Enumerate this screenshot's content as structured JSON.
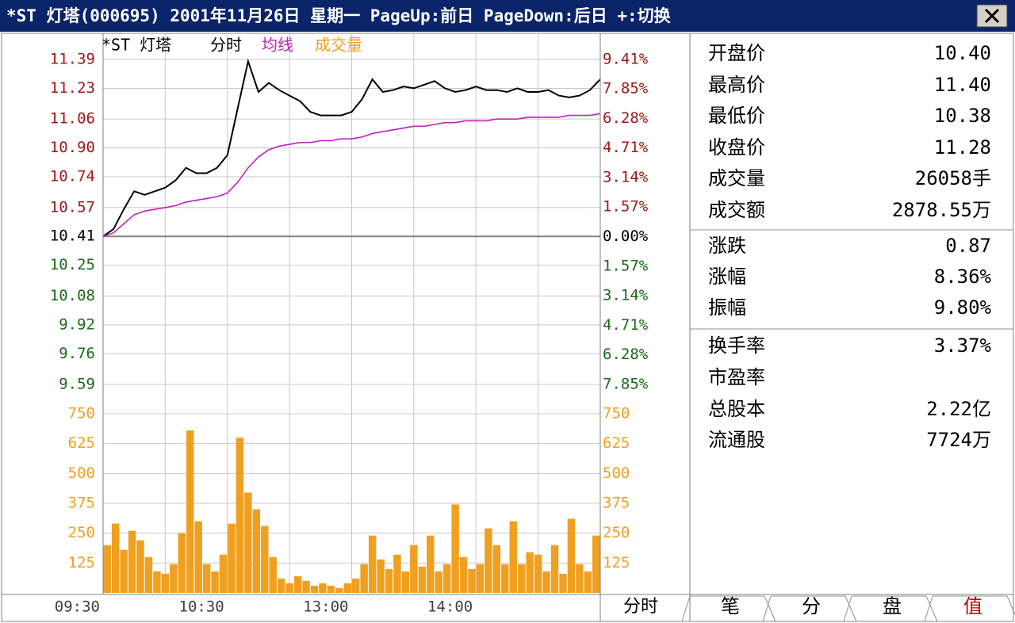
{
  "titlebar": {
    "title": "*ST 灯塔(000695) 2001年11月26日 星期一 PageUp:前日 PageDown:后日 +:切换"
  },
  "chart_data": [
    {
      "type": "line",
      "title": "*ST 灯塔",
      "x": [
        0,
        5,
        10,
        15,
        20,
        25,
        30,
        35,
        40,
        45,
        50,
        55,
        60,
        65,
        70,
        75,
        80,
        85,
        90,
        95,
        100,
        105,
        110,
        115,
        120,
        125,
        130,
        135,
        140,
        145,
        150,
        155,
        160,
        165,
        170,
        175,
        180,
        185,
        190,
        195,
        200,
        205,
        210,
        215,
        220,
        225,
        230,
        235,
        240
      ],
      "series": [
        {
          "name": "分时",
          "color": "#000000",
          "values": [
            10.41,
            10.45,
            10.56,
            10.66,
            10.64,
            10.66,
            10.68,
            10.72,
            10.79,
            10.76,
            10.76,
            10.79,
            10.86,
            11.12,
            11.38,
            11.21,
            11.26,
            11.22,
            11.19,
            11.16,
            11.1,
            11.08,
            11.08,
            11.08,
            11.1,
            11.17,
            11.28,
            11.21,
            11.22,
            11.24,
            11.23,
            11.25,
            11.27,
            11.23,
            11.21,
            11.22,
            11.24,
            11.22,
            11.22,
            11.21,
            11.23,
            11.21,
            11.21,
            11.22,
            11.19,
            11.18,
            11.19,
            11.22,
            11.28
          ]
        },
        {
          "name": "均线",
          "color": "#c020c0",
          "values": [
            10.41,
            10.43,
            10.48,
            10.53,
            10.55,
            10.56,
            10.57,
            10.58,
            10.6,
            10.61,
            10.62,
            10.63,
            10.65,
            10.71,
            10.79,
            10.85,
            10.89,
            10.91,
            10.92,
            10.93,
            10.93,
            10.94,
            10.94,
            10.95,
            10.95,
            10.96,
            10.98,
            10.99,
            11.0,
            11.01,
            11.02,
            11.02,
            11.03,
            11.04,
            11.04,
            11.05,
            11.05,
            11.05,
            11.06,
            11.06,
            11.06,
            11.07,
            11.07,
            11.07,
            11.07,
            11.08,
            11.08,
            11.08,
            11.09
          ]
        }
      ],
      "xlim": [
        0,
        240
      ],
      "xticks": [
        {
          "value": 0,
          "label": "09:30"
        },
        {
          "value": 60,
          "label": "10:30"
        },
        {
          "value": 120,
          "label": "13:00"
        },
        {
          "value": 180,
          "label": "14:00"
        }
      ],
      "xgrid": [
        0,
        30,
        60,
        90,
        120,
        150,
        180,
        210,
        240
      ],
      "ylim": [
        9.59,
        11.39
      ],
      "yticks": [
        11.39,
        11.23,
        11.06,
        {
          "value": 10.9,
          "label": "10.90"
        },
        10.74,
        10.57,
        10.41,
        10.25,
        10.08,
        9.92,
        9.76,
        9.59
      ],
      "y2lim": [
        -7.85,
        9.41
      ],
      "y2ticks": [
        {
          "value": 9.41,
          "label": "9.41%"
        },
        {
          "value": 7.85,
          "label": "7.85%"
        },
        {
          "value": 6.28,
          "label": "6.28%"
        },
        {
          "value": 4.71,
          "label": "4.71%"
        },
        {
          "value": 3.14,
          "label": "3.14%"
        },
        {
          "value": 1.57,
          "label": "1.57%"
        },
        {
          "value": 0,
          "label": "0.00%"
        },
        {
          "value": -1.57,
          "label": "1.57%"
        },
        {
          "value": -3.14,
          "label": "3.14%"
        },
        {
          "value": -4.71,
          "label": "4.71%"
        },
        {
          "value": -6.28,
          "label": "6.28%"
        },
        {
          "value": -7.85,
          "label": "7.85%"
        }
      ],
      "grid": true,
      "up_color": "#a01818",
      "down_color": "#1a6a1a",
      "flat_color": "#000000"
    },
    {
      "type": "bar",
      "x": [
        0,
        4,
        8,
        12,
        16,
        20,
        24,
        28,
        32,
        36,
        40,
        44,
        48,
        52,
        56,
        60,
        64,
        68,
        72,
        76,
        80,
        84,
        88,
        92,
        96,
        100,
        104,
        108,
        112,
        116,
        120,
        124,
        128,
        132,
        136,
        140,
        144,
        148,
        152,
        156,
        160,
        164,
        168,
        172,
        176,
        180,
        184,
        188,
        192,
        196,
        200,
        204,
        208,
        212,
        216,
        220,
        224,
        228,
        232,
        236
      ],
      "series": [
        {
          "name": "成交量",
          "color": "#f0a020",
          "values": [
            200,
            290,
            180,
            260,
            220,
            150,
            90,
            80,
            120,
            250,
            680,
            300,
            120,
            90,
            160,
            290,
            650,
            420,
            350,
            280,
            150,
            60,
            40,
            70,
            50,
            30,
            40,
            30,
            20,
            40,
            60,
            120,
            240,
            140,
            100,
            160,
            90,
            200,
            110,
            240,
            90,
            120,
            370,
            150,
            100,
            120,
            270,
            200,
            120,
            300,
            120,
            170,
            160,
            90,
            200,
            80,
            310,
            120,
            90,
            240
          ]
        }
      ],
      "xlim": [
        0,
        240
      ],
      "ylim": [
        0,
        750
      ],
      "yticks": [
        750,
        625,
        500,
        375,
        250,
        125
      ],
      "grid": true
    }
  ],
  "footer": {
    "period_label": "分时",
    "tabs": [
      "笔",
      "分",
      "盘",
      "值"
    ],
    "active_tab": 3
  },
  "quote_panel": {
    "groups": [
      [
        {
          "label": "开盘价",
          "value": "10.40"
        },
        {
          "label": "最高价",
          "value": "11.40"
        },
        {
          "label": "最低价",
          "value": "10.38"
        },
        {
          "label": "收盘价",
          "value": "11.28"
        },
        {
          "label": "成交量",
          "value": "26058手"
        },
        {
          "label": "成交额",
          "value": "2878.55万"
        }
      ],
      [
        {
          "label": "涨跌",
          "value": "0.87"
        },
        {
          "label": "涨幅",
          "value": "8.36%"
        },
        {
          "label": "振幅",
          "value": "9.80%"
        }
      ],
      [
        {
          "label": "换手率",
          "value": "3.37%"
        },
        {
          "label": "市盈率"
        },
        {
          "label": "总股本",
          "value": "2.22亿"
        },
        {
          "label": "流通股",
          "value": "7724万"
        }
      ]
    ]
  }
}
